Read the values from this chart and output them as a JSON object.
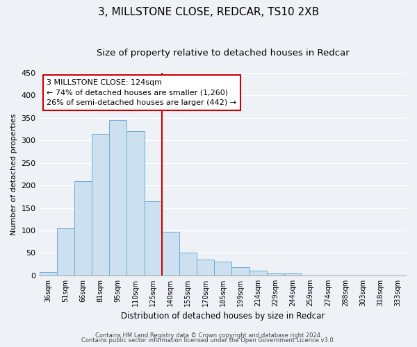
{
  "title": "3, MILLSTONE CLOSE, REDCAR, TS10 2XB",
  "subtitle": "Size of property relative to detached houses in Redcar",
  "xlabel": "Distribution of detached houses by size in Redcar",
  "ylabel": "Number of detached properties",
  "bar_labels": [
    "36sqm",
    "51sqm",
    "66sqm",
    "81sqm",
    "95sqm",
    "110sqm",
    "125sqm",
    "140sqm",
    "155sqm",
    "170sqm",
    "185sqm",
    "199sqm",
    "214sqm",
    "229sqm",
    "244sqm",
    "259sqm",
    "274sqm",
    "288sqm",
    "303sqm",
    "318sqm",
    "333sqm"
  ],
  "bar_values": [
    7,
    105,
    210,
    315,
    345,
    320,
    165,
    97,
    50,
    35,
    30,
    18,
    10,
    5,
    5,
    0,
    0,
    0,
    0,
    0,
    0
  ],
  "bar_color": "#cce0f0",
  "bar_edge_color": "#6aaed6",
  "vline_x": 6.5,
  "vline_color": "#cc0000",
  "ylim": [
    0,
    450
  ],
  "yticks": [
    0,
    50,
    100,
    150,
    200,
    250,
    300,
    350,
    400,
    450
  ],
  "annotation_title": "3 MILLSTONE CLOSE: 124sqm",
  "annotation_line1": "← 74% of detached houses are smaller (1,260)",
  "annotation_line2": "26% of semi-detached houses are larger (442) →",
  "footnote1": "Contains HM Land Registry data © Crown copyright and database right 2024.",
  "footnote2": "Contains public sector information licensed under the Open Government Licence v3.0.",
  "background_color": "#eef2f7",
  "grid_color": "#ffffff",
  "title_fontsize": 11,
  "subtitle_fontsize": 9.5,
  "ylabel_fontsize": 8,
  "xlabel_fontsize": 8.5,
  "tick_fontsize": 7,
  "ytick_fontsize": 8,
  "footnote_fontsize": 6,
  "ann_fontsize": 8
}
